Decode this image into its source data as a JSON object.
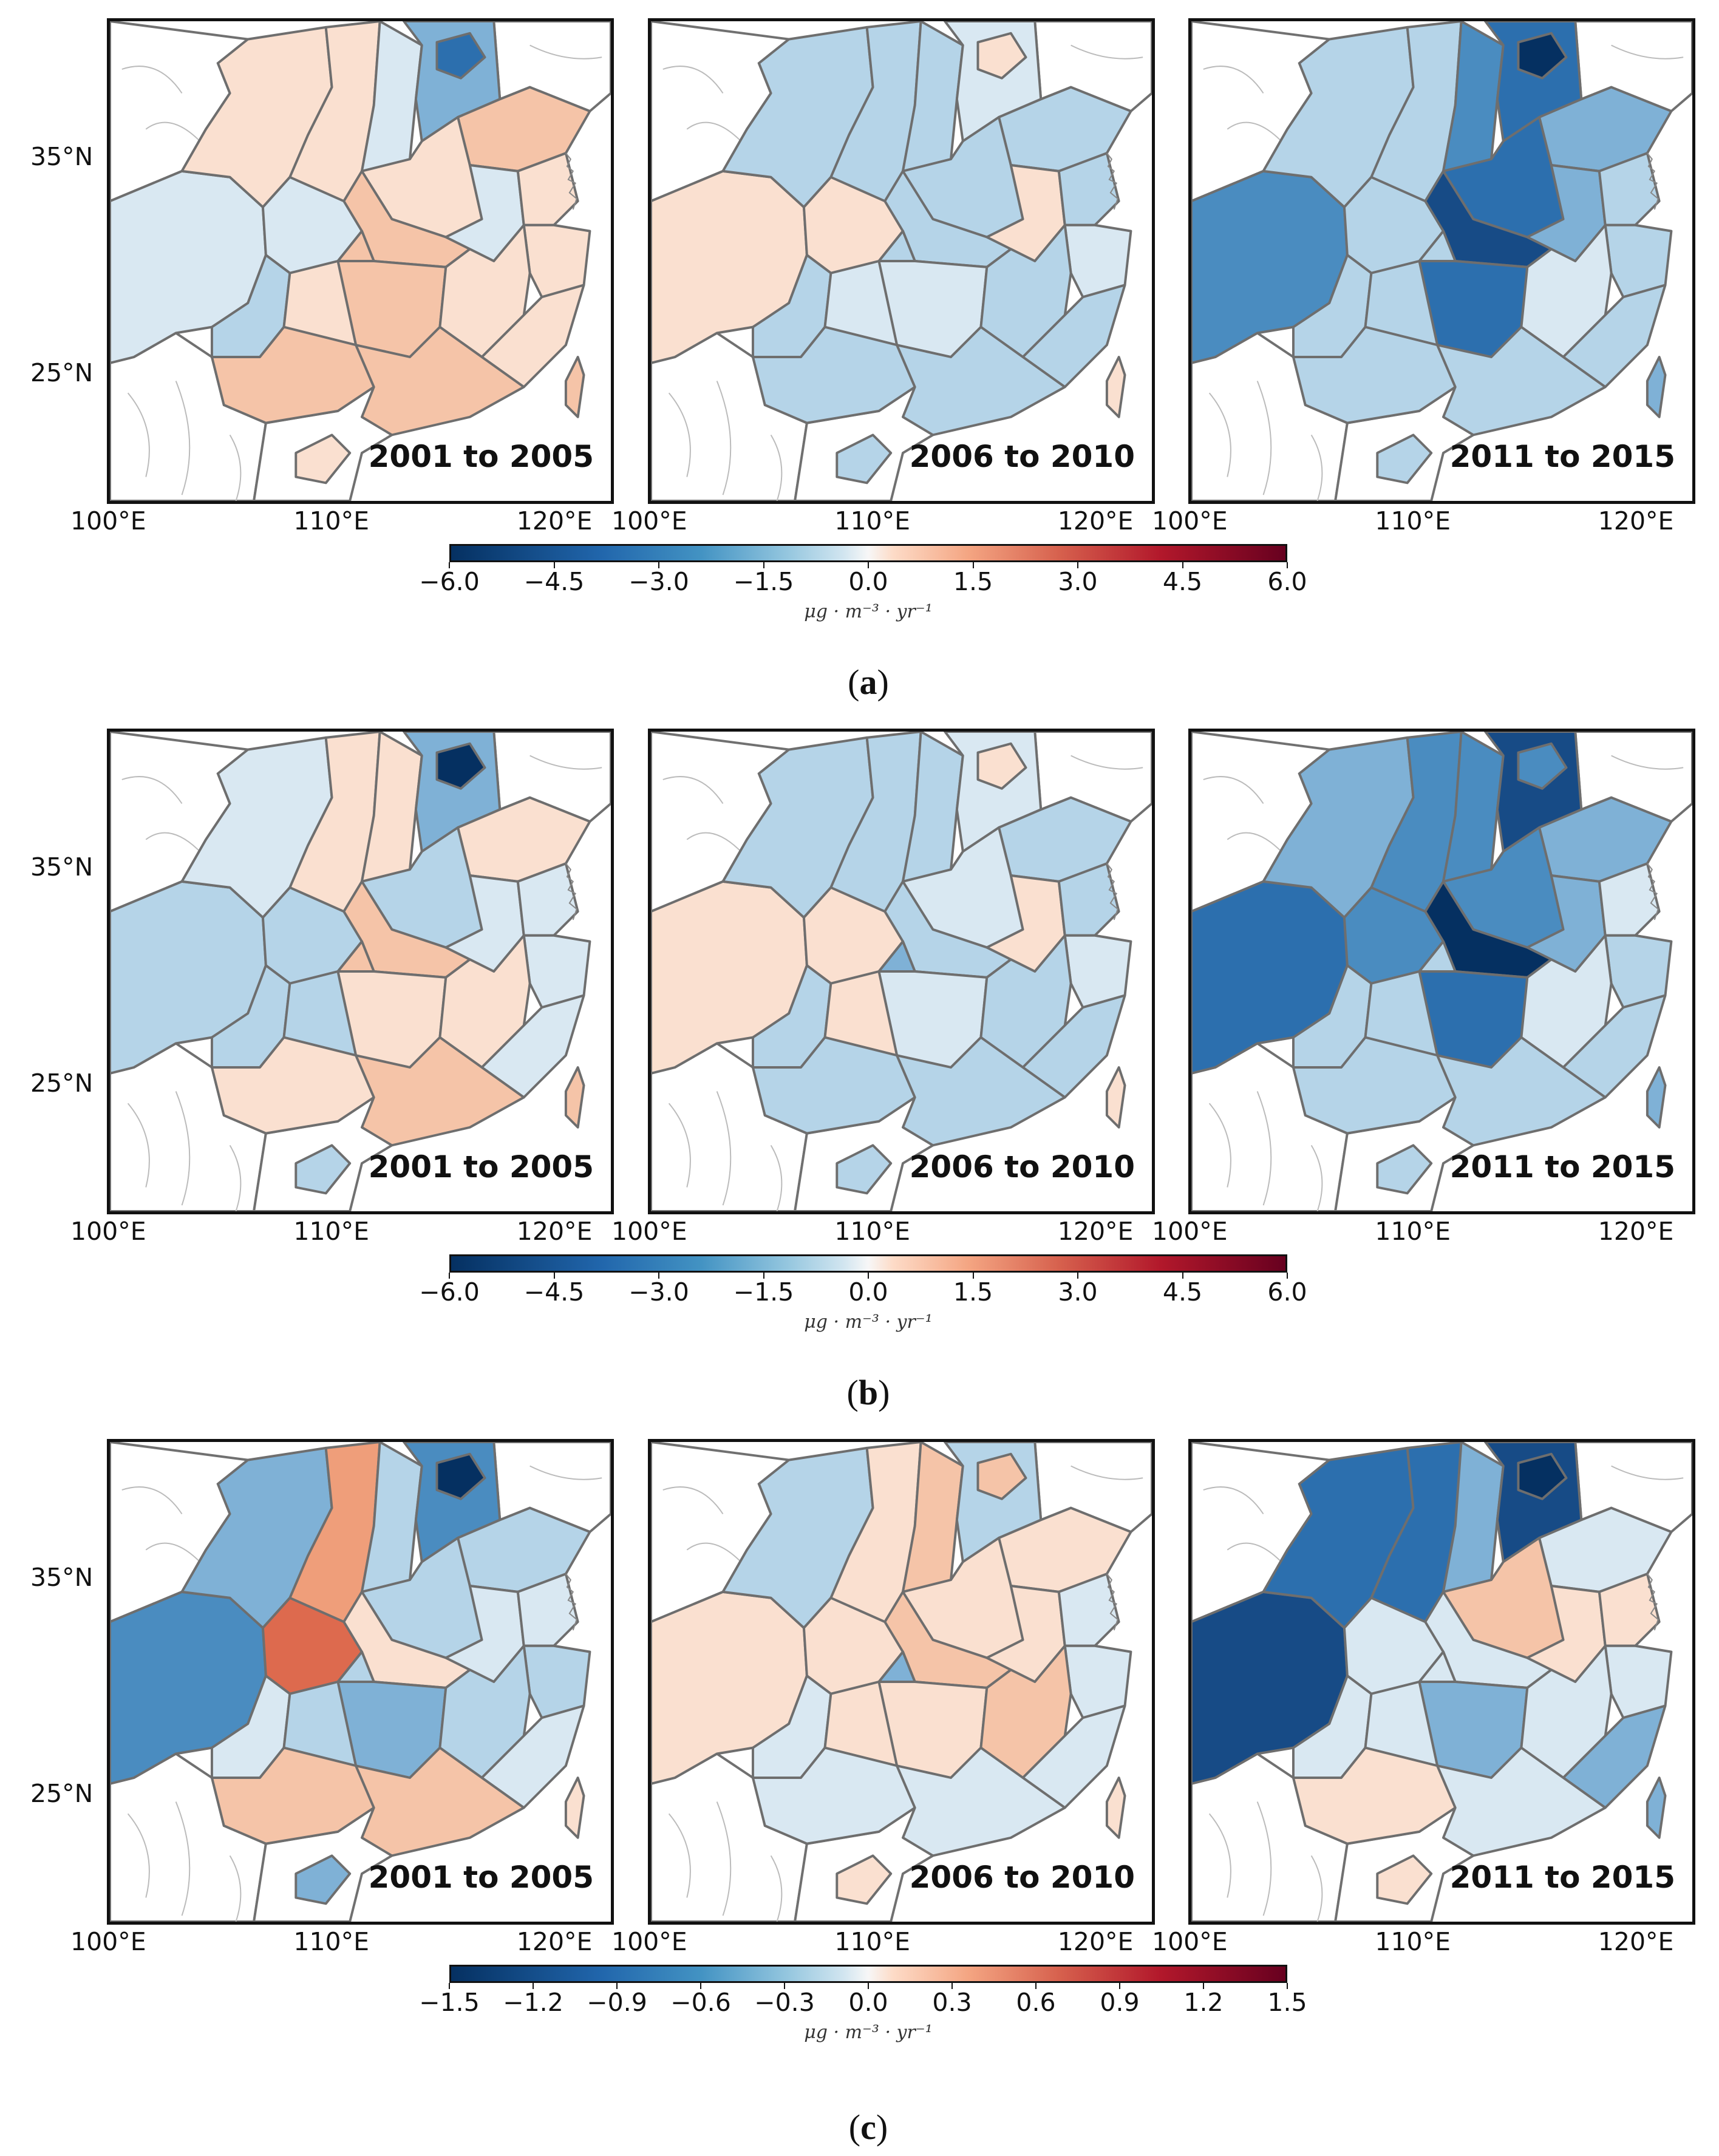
{
  "colors": {
    "dn6": "#053061",
    "dn5": "#174b86",
    "dn4": "#2c6fae",
    "dn3": "#4a8cc0",
    "dn2": "#7fb1d6",
    "dn1": "#b5d4e8",
    "dn0": "#d9e8f2",
    "up0": "#fae0d0",
    "up1": "#f5c4a8",
    "up2": "#ef9e7a",
    "up3": "#dd6a4e",
    "grey": "#d8d8d8",
    "border": "#6e6e6e",
    "outline": "#707070",
    "coast": "#888888"
  },
  "longitude_labels": [
    "100°E",
    "110°E",
    "120°E"
  ],
  "latitude_labels": [
    "35°N",
    "25°N"
  ],
  "unit_label": "μg · m⁻³ · yr⁻¹",
  "figures": [
    {
      "caption_open": "(",
      "caption_letter": "a",
      "caption_close": ")",
      "colorbar_ticks": [
        "−6.0",
        "−4.5",
        "−3.0",
        "−1.5",
        "0.0",
        "1.5",
        "3.0",
        "4.5",
        "6.0"
      ],
      "panels": [
        {
          "label": "2001 to 2005",
          "fills": {
            "xinjiang_tibet": "dn0",
            "gansu_qinghai": "up0",
            "sichuan": "dn0",
            "yunnan": "dn1",
            "shaanxi": "up0",
            "shanxi": "dn0",
            "hebei": "dn2",
            "beijing": "dn4",
            "shandong": "up1",
            "henan": "up0",
            "hubei": "up1",
            "anhui": "dn0",
            "jiangsu": "up0",
            "hunan": "up1",
            "jiangxi": "up0",
            "zhejiang": "up0",
            "fujian": "up0",
            "guizhou": "up0",
            "guangxi": "up1",
            "guangdong": "up1",
            "hainan": "up0",
            "taiwan": "up1",
            "chongqing": "up1"
          }
        },
        {
          "label": "2006 to 2010",
          "fills": {
            "xinjiang_tibet": "up0",
            "gansu_qinghai": "dn1",
            "sichuan": "up0",
            "yunnan": "dn1",
            "shaanxi": "dn1",
            "shanxi": "dn1",
            "hebei": "dn0",
            "beijing": "up0",
            "shandong": "dn1",
            "henan": "dn1",
            "hubei": "dn1",
            "anhui": "up0",
            "jiangsu": "dn1",
            "hunan": "dn0",
            "jiangxi": "dn1",
            "zhejiang": "dn0",
            "fujian": "dn1",
            "guizhou": "dn0",
            "guangxi": "dn1",
            "guangdong": "dn1",
            "hainan": "dn1",
            "taiwan": "up0",
            "chongqing": "dn1"
          }
        },
        {
          "label": "2011 to 2015",
          "fills": {
            "xinjiang_tibet": "dn3",
            "gansu_qinghai": "dn1",
            "sichuan": "dn1",
            "yunnan": "dn1",
            "shaanxi": "dn1",
            "shanxi": "dn3",
            "hebei": "dn4",
            "beijing": "dn6",
            "shandong": "dn2",
            "henan": "dn4",
            "hubei": "dn5",
            "anhui": "dn2",
            "jiangsu": "dn1",
            "hunan": "dn4",
            "jiangxi": "dn0",
            "zhejiang": "dn1",
            "fujian": "dn1",
            "guizhou": "dn1",
            "guangxi": "dn1",
            "guangdong": "dn1",
            "hainan": "dn1",
            "taiwan": "dn2",
            "chongqing": "dn1"
          }
        }
      ]
    },
    {
      "caption_open": "(",
      "caption_letter": "b",
      "caption_close": ")",
      "colorbar_ticks": [
        "−6.0",
        "−4.5",
        "−3.0",
        "−1.5",
        "0.0",
        "1.5",
        "3.0",
        "4.5",
        "6.0"
      ],
      "panels": [
        {
          "label": "2001 to 2005",
          "fills": {
            "xinjiang_tibet": "dn1",
            "gansu_qinghai": "dn0",
            "sichuan": "dn1",
            "yunnan": "dn1",
            "shaanxi": "up0",
            "shanxi": "up0",
            "hebei": "dn2",
            "beijing": "dn6",
            "shandong": "up0",
            "henan": "dn1",
            "hubei": "up1",
            "anhui": "dn0",
            "jiangsu": "dn0",
            "hunan": "up0",
            "jiangxi": "up0",
            "zhejiang": "dn0",
            "fujian": "dn0",
            "guizhou": "dn1",
            "guangxi": "up0",
            "guangdong": "up1",
            "hainan": "dn1",
            "taiwan": "up1",
            "chongqing": "up1"
          }
        },
        {
          "label": "2006 to 2010",
          "fills": {
            "xinjiang_tibet": "up0",
            "gansu_qinghai": "dn1",
            "sichuan": "up0",
            "yunnan": "dn1",
            "shaanxi": "dn1",
            "shanxi": "dn1",
            "hebei": "dn0",
            "beijing": "up0",
            "shandong": "dn1",
            "henan": "dn0",
            "hubei": "dn1",
            "anhui": "up0",
            "jiangsu": "dn1",
            "hunan": "dn0",
            "jiangxi": "dn1",
            "zhejiang": "dn0",
            "fujian": "dn1",
            "guizhou": "up0",
            "guangxi": "dn1",
            "guangdong": "dn1",
            "hainan": "dn1",
            "taiwan": "up0",
            "chongqing": "dn2"
          }
        },
        {
          "label": "2011 to 2015",
          "fills": {
            "xinjiang_tibet": "dn4",
            "gansu_qinghai": "dn2",
            "sichuan": "dn3",
            "yunnan": "dn1",
            "shaanxi": "dn3",
            "shanxi": "dn3",
            "hebei": "dn5",
            "beijing": "dn3",
            "shandong": "dn2",
            "henan": "dn3",
            "hubei": "dn6",
            "anhui": "dn2",
            "jiangsu": "dn0",
            "hunan": "dn4",
            "jiangxi": "dn0",
            "zhejiang": "dn1",
            "fujian": "dn1",
            "guizhou": "dn1",
            "guangxi": "dn1",
            "guangdong": "dn1",
            "hainan": "dn1",
            "taiwan": "dn2",
            "chongqing": "dn1"
          }
        }
      ]
    },
    {
      "caption_open": "(",
      "caption_letter": "c",
      "caption_close": ")",
      "colorbar_ticks": [
        "−1.5",
        "−1.2",
        "−0.9",
        "−0.6",
        "−0.3",
        "0.0",
        "0.3",
        "0.6",
        "0.9",
        "1.2",
        "1.5"
      ],
      "panels": [
        {
          "label": "2001 to 2005",
          "fills": {
            "xinjiang_tibet": "dn3",
            "gansu_qinghai": "dn2",
            "sichuan": "up3",
            "yunnan": "dn0",
            "shaanxi": "up2",
            "shanxi": "dn1",
            "hebei": "dn3",
            "beijing": "dn6",
            "shandong": "dn1",
            "henan": "dn1",
            "hubei": "up0",
            "anhui": "dn0",
            "jiangsu": "dn0",
            "hunan": "dn2",
            "jiangxi": "dn1",
            "zhejiang": "dn1",
            "fujian": "dn0",
            "guizhou": "dn1",
            "guangxi": "up1",
            "guangdong": "up1",
            "hainan": "dn2",
            "taiwan": "up0",
            "chongqing": "dn1"
          }
        },
        {
          "label": "2006 to 2010",
          "fills": {
            "xinjiang_tibet": "up0",
            "gansu_qinghai": "dn1",
            "sichuan": "up0",
            "yunnan": "dn0",
            "shaanxi": "up0",
            "shanxi": "up1",
            "hebei": "dn1",
            "beijing": "up1",
            "shandong": "up0",
            "henan": "up0",
            "hubei": "up1",
            "anhui": "up0",
            "jiangsu": "dn0",
            "hunan": "up0",
            "jiangxi": "up1",
            "zhejiang": "dn0",
            "fujian": "dn0",
            "guizhou": "up0",
            "guangxi": "dn0",
            "guangdong": "dn0",
            "hainan": "up0",
            "taiwan": "up0",
            "chongqing": "dn2"
          }
        },
        {
          "label": "2011 to 2015",
          "fills": {
            "xinjiang_tibet": "dn5",
            "gansu_qinghai": "dn4",
            "sichuan": "dn0",
            "yunnan": "dn0",
            "shaanxi": "dn4",
            "shanxi": "dn2",
            "hebei": "dn5",
            "beijing": "dn6",
            "shandong": "dn0",
            "henan": "up1",
            "hubei": "dn0",
            "anhui": "up0",
            "jiangsu": "up0",
            "hunan": "dn2",
            "jiangxi": "dn0",
            "zhejiang": "dn0",
            "fujian": "dn2",
            "guizhou": "dn0",
            "guangxi": "up0",
            "guangdong": "dn0",
            "hainan": "up0",
            "taiwan": "dn2",
            "chongqing": "dn0"
          }
        }
      ]
    }
  ]
}
